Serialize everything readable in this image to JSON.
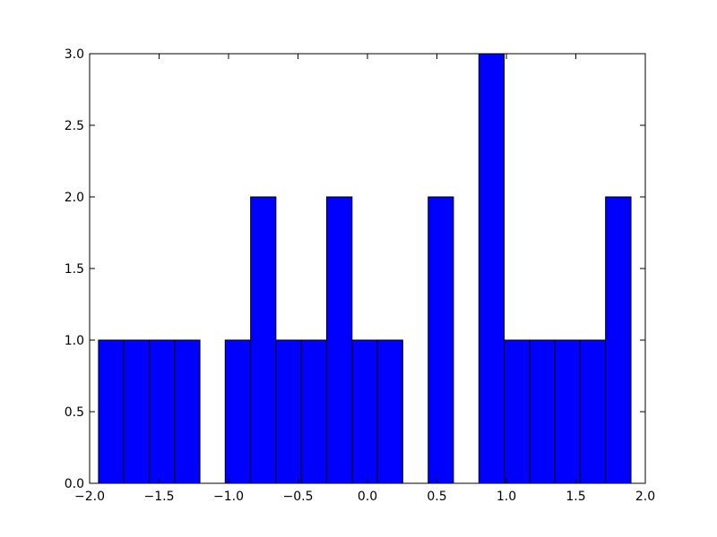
{
  "chart_data": {
    "type": "histogram",
    "bins": [
      -1.936,
      -1.754,
      -1.571,
      -1.389,
      -1.206,
      -1.024,
      -0.841,
      -0.659,
      -0.476,
      -0.294,
      -0.111,
      0.072,
      0.254,
      0.437,
      0.619,
      0.802,
      0.984,
      1.167,
      1.349,
      1.532,
      1.714,
      1.897
    ],
    "values": [
      1,
      1,
      1,
      1,
      0,
      1,
      2,
      1,
      1,
      2,
      1,
      1,
      0,
      2,
      0,
      3,
      1,
      1,
      1,
      1,
      2
    ],
    "color": "#0000ff",
    "xlim": [
      -2,
      2
    ],
    "xticks": [
      {
        "value": -2,
        "label": "−2.0"
      },
      {
        "value": -1.5,
        "label": "−1.5"
      },
      {
        "value": -1,
        "label": "−1.0"
      },
      {
        "value": -0.5,
        "label": "−0.5"
      },
      {
        "value": 0,
        "label": "0.0"
      },
      {
        "value": 0.5,
        "label": "0.5"
      },
      {
        "value": 1,
        "label": "1.0"
      },
      {
        "value": 1.5,
        "label": "1.5"
      },
      {
        "value": 2,
        "label": "2.0"
      }
    ],
    "ylim": [
      0,
      3
    ],
    "yticks": [
      {
        "value": 0,
        "label": "0.0"
      },
      {
        "value": 0.5,
        "label": "0.5"
      },
      {
        "value": 1,
        "label": "1.0"
      },
      {
        "value": 1.5,
        "label": "1.5"
      },
      {
        "value": 2,
        "label": "2.0"
      },
      {
        "value": 2.5,
        "label": "2.5"
      },
      {
        "value": 3,
        "label": "3.0"
      }
    ],
    "grid": false
  }
}
